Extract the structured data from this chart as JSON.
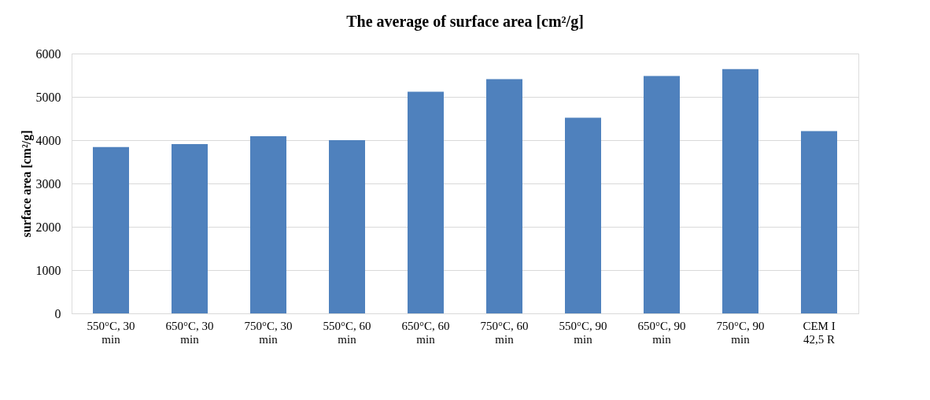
{
  "chart_data": {
    "type": "bar",
    "title": "The average of surface area [cm²/g]",
    "ylabel": "surface area [cm²/g]",
    "categories": [
      "550°C, 30\nmin",
      "650°C, 30\nmin",
      "750°C, 30\nmin",
      "550°C, 60\nmin",
      "650°C, 60\nmin",
      "750°C, 60\nmin",
      "550°C, 90\nmin",
      "650°C, 90\nmin",
      "750°C, 90\nmin",
      "CEM I\n42,5 R"
    ],
    "values": [
      3840,
      3910,
      4090,
      4000,
      5120,
      5410,
      4520,
      5480,
      5640,
      4210
    ],
    "color": "#4f81bd",
    "ylim": [
      0,
      6000
    ],
    "yticks": [
      0,
      1000,
      2000,
      3000,
      4000,
      5000,
      6000
    ],
    "grid": "y"
  }
}
